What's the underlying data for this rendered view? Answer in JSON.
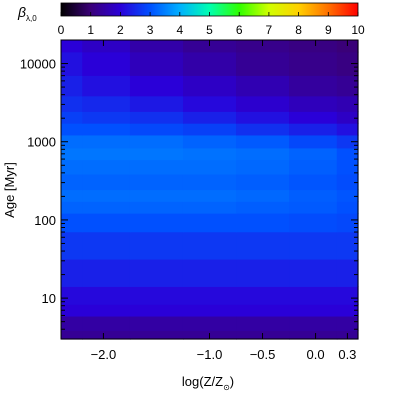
{
  "chart_data": {
    "type": "heatmap",
    "title": "",
    "colorbar": {
      "label": "β",
      "label_subscript": "λ,0",
      "range": [
        0,
        10
      ],
      "tick_labels": [
        "0",
        "1",
        "2",
        "3",
        "4",
        "5",
        "6",
        "7",
        "8",
        "9",
        "10"
      ],
      "colormap": [
        "#000000",
        "#3a0078",
        "#2a00d8",
        "#0050ff",
        "#00b0ff",
        "#00ffb0",
        "#30ff00",
        "#d0ff00",
        "#ffd000",
        "#ff7000",
        "#ff0000"
      ]
    },
    "x_axis": {
      "label": "log(Z/Z",
      "label_subscript": "⊙",
      "label_close": ")",
      "range": [
        -2.4,
        0.4
      ],
      "tick_values": [
        -2.0,
        -1.0,
        -0.5,
        0.0,
        0.3
      ],
      "tick_labels": [
        "−2.0",
        "−1.0",
        "−0.5",
        "0.0",
        "0.3"
      ]
    },
    "y_axis": {
      "label": "Age",
      "label_unit": "[Myr]",
      "scale": "log",
      "range": [
        3,
        20000
      ],
      "tick_values": [
        10,
        100,
        1000,
        10000
      ],
      "tick_labels": [
        "10",
        "100",
        "1000",
        "10000"
      ]
    },
    "grid": false,
    "x_samples": [
      -2.4,
      -2.0,
      -1.5,
      -1.0,
      -0.5,
      0.0,
      0.4
    ],
    "age_samples": [
      3,
      5,
      7,
      10,
      20,
      50,
      100,
      150,
      200,
      300,
      500,
      700,
      1000,
      1500,
      2000,
      3000,
      5000,
      10000,
      20000
    ],
    "beta_values": [
      [
        1.3,
        1.3,
        1.3,
        1.3,
        1.3,
        1.3,
        1.3
      ],
      [
        1.45,
        1.45,
        1.45,
        1.45,
        1.45,
        1.45,
        1.45
      ],
      [
        2.0,
        2.0,
        2.0,
        2.0,
        2.0,
        2.0,
        2.0
      ],
      [
        2.1,
        2.1,
        2.1,
        2.1,
        2.1,
        2.1,
        2.1
      ],
      [
        2.4,
        2.4,
        2.4,
        2.4,
        2.4,
        2.4,
        2.4
      ],
      [
        2.7,
        2.7,
        2.7,
        2.7,
        2.7,
        2.7,
        2.7
      ],
      [
        3.0,
        3.0,
        3.0,
        3.0,
        3.0,
        2.95,
        2.9
      ],
      [
        3.2,
        3.2,
        3.2,
        3.2,
        3.15,
        3.1,
        3.0
      ],
      [
        3.3,
        3.3,
        3.3,
        3.3,
        3.25,
        3.15,
        3.05
      ],
      [
        3.2,
        3.2,
        3.2,
        3.2,
        3.15,
        3.05,
        2.95
      ],
      [
        3.3,
        3.3,
        3.3,
        3.3,
        3.25,
        3.15,
        3.0
      ],
      [
        3.4,
        3.4,
        3.4,
        3.35,
        3.3,
        3.2,
        3.0
      ],
      [
        3.3,
        3.3,
        3.3,
        3.2,
        3.1,
        2.9,
        2.7
      ],
      [
        3.0,
        3.0,
        2.9,
        2.8,
        2.6,
        2.4,
        2.2
      ],
      [
        2.8,
        2.7,
        2.6,
        2.4,
        2.2,
        2.0,
        1.8
      ],
      [
        2.6,
        2.5,
        2.3,
        2.1,
        1.9,
        1.7,
        1.6
      ],
      [
        2.4,
        2.2,
        2.0,
        1.8,
        1.6,
        1.4,
        1.3
      ],
      [
        2.2,
        2.0,
        1.7,
        1.5,
        1.3,
        1.2,
        1.1
      ],
      [
        2.0,
        1.8,
        1.5,
        1.3,
        1.2,
        1.1,
        1.0
      ]
    ]
  }
}
